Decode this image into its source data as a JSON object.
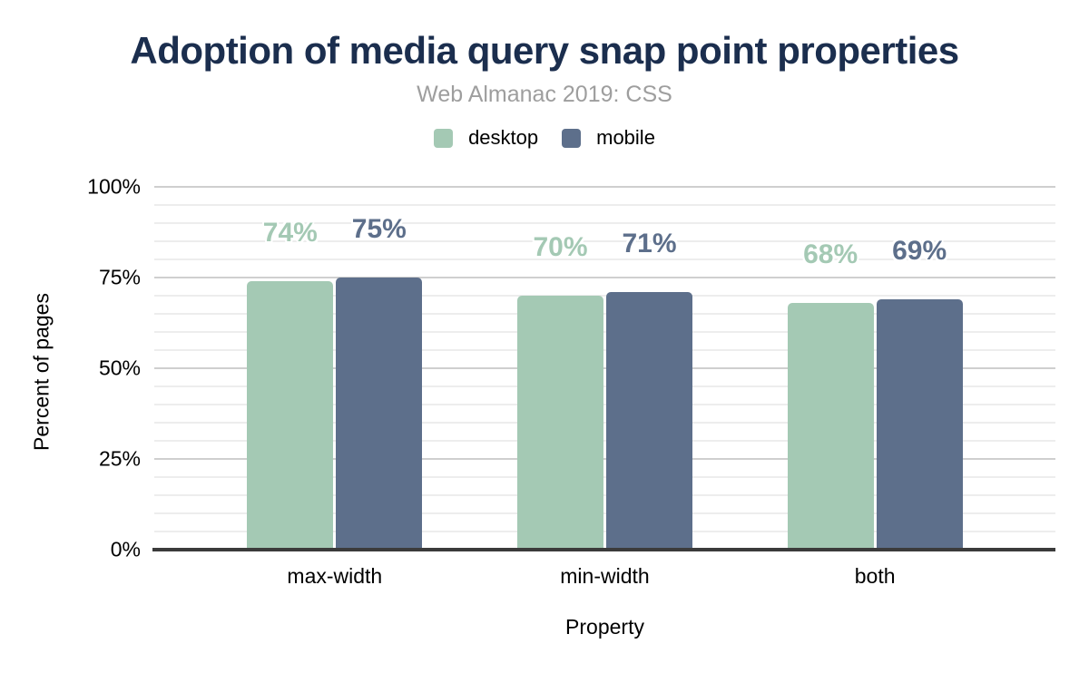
{
  "header": {
    "title": "Adoption of media query snap point properties",
    "subtitle": "Web Almanac 2019: CSS"
  },
  "chart_data": {
    "type": "bar",
    "title": "Adoption of media query snap point properties",
    "subtitle": "Web Almanac 2019: CSS",
    "categories": [
      "max-width",
      "min-width",
      "both"
    ],
    "series": [
      {
        "name": "desktop",
        "color": "#a4c9b4",
        "values": [
          74,
          70,
          68
        ],
        "data_labels": [
          "74%",
          "70%",
          "68%"
        ]
      },
      {
        "name": "mobile",
        "color": "#5d6f8b",
        "values": [
          75,
          71,
          69
        ],
        "data_labels": [
          "75%",
          "71%",
          "69%"
        ]
      }
    ],
    "xlabel": "Property",
    "ylabel": "Percent of pages",
    "ylim": [
      0,
      100
    ],
    "ytick_labels": [
      "0%",
      "25%",
      "50%",
      "75%",
      "100%"
    ],
    "ytick_step_major": 25,
    "ytick_step_minor": 5,
    "grid": true,
    "legend_position": "top",
    "data_label_format": "{value}%"
  },
  "colors": {
    "background": "#ffffff",
    "title": "#1b2e4e",
    "subtitle": "#9e9e9e",
    "desktop_series": "#a4c9b4",
    "mobile_series": "#5d6f8b",
    "minor_gridline": "#ededed",
    "major_gridline": "#cfcfcf",
    "axis_line": "#3b3b3b",
    "tick_text": "#000000"
  }
}
